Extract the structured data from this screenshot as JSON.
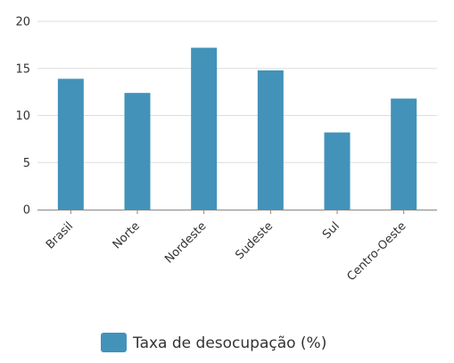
{
  "chart_data": {
    "type": "bar",
    "categories": [
      "Brasil",
      "Norte",
      "Nordeste",
      "Sudeste",
      "Sul",
      "Centro-Oeste"
    ],
    "series": [
      {
        "name": "Taxa de desocupação (%)",
        "values": [
          13.9,
          12.4,
          17.2,
          14.8,
          8.2,
          11.8
        ],
        "color": "#4292b9"
      }
    ],
    "yticks": [
      0,
      5,
      10,
      15,
      20
    ],
    "ylim": [
      0,
      20
    ],
    "grid": true,
    "legend_position": "bottom-center"
  }
}
